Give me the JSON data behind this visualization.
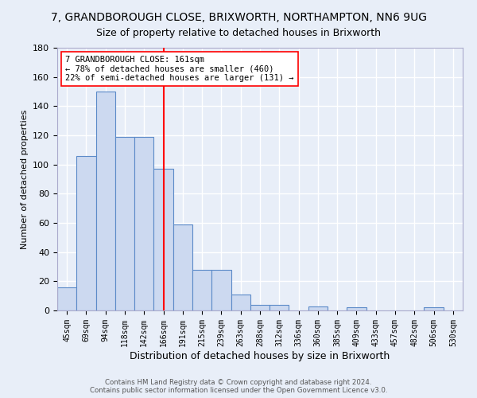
{
  "title": "7, GRANDBOROUGH CLOSE, BRIXWORTH, NORTHAMPTON, NN6 9UG",
  "subtitle": "Size of property relative to detached houses in Brixworth",
  "xlabel": "Distribution of detached houses by size in Brixworth",
  "ylabel": "Number of detached properties",
  "bin_labels": [
    "45sqm",
    "69sqm",
    "94sqm",
    "118sqm",
    "142sqm",
    "166sqm",
    "191sqm",
    "215sqm",
    "239sqm",
    "263sqm",
    "288sqm",
    "312sqm",
    "336sqm",
    "360sqm",
    "385sqm",
    "409sqm",
    "433sqm",
    "457sqm",
    "482sqm",
    "506sqm",
    "530sqm"
  ],
  "bar_heights": [
    16,
    106,
    150,
    119,
    119,
    97,
    59,
    28,
    28,
    11,
    4,
    4,
    0,
    3,
    0,
    2,
    0,
    0,
    0,
    2,
    0
  ],
  "bar_color": "#ccd9f0",
  "bar_edge_color": "#5b8ac8",
  "reference_line_index": 5,
  "reference_line_color": "red",
  "annotation_text": "7 GRANDBOROUGH CLOSE: 161sqm\n← 78% of detached houses are smaller (460)\n22% of semi-detached houses are larger (131) →",
  "annotation_box_color": "white",
  "annotation_box_edge": "red",
  "ylim": [
    0,
    180
  ],
  "yticks": [
    0,
    20,
    40,
    60,
    80,
    100,
    120,
    140,
    160,
    180
  ],
  "footnote": "Contains HM Land Registry data © Crown copyright and database right 2024.\nContains public sector information licensed under the Open Government Licence v3.0.",
  "background_color": "#e8eef8",
  "grid_color": "white",
  "title_fontsize": 10,
  "subtitle_fontsize": 9,
  "ylabel_fontsize": 8,
  "xlabel_fontsize": 9,
  "tick_fontsize": 7
}
